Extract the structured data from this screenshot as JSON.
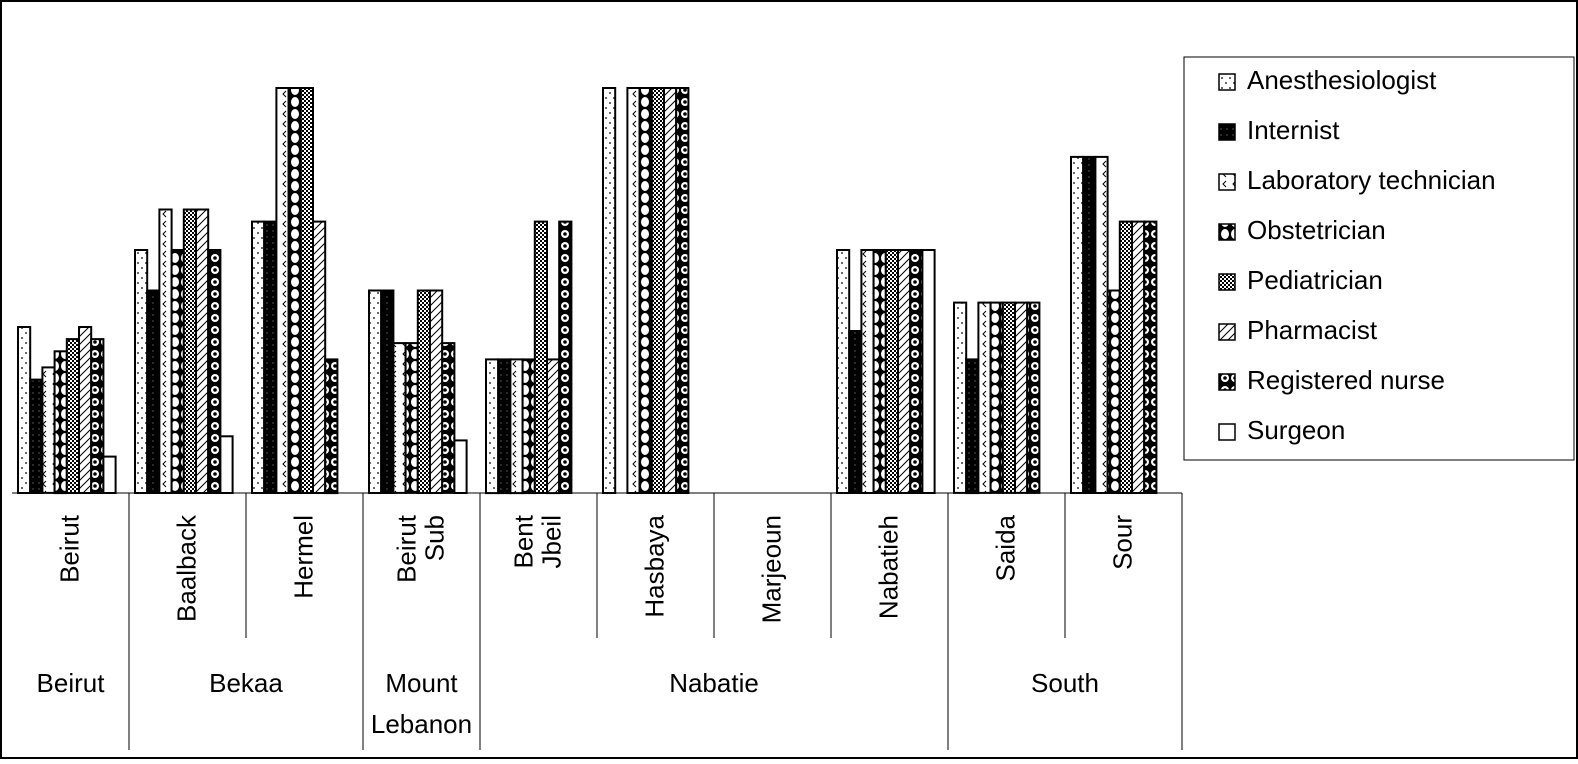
{
  "chart_data": {
    "type": "bar",
    "title": "",
    "xlabel": "",
    "ylabel": "",
    "ylim": [
      0,
      1
    ],
    "grid": false,
    "legend_position": "right",
    "groups": [
      {
        "label": "Beirut",
        "districts": [
          "Beirut"
        ]
      },
      {
        "label": "Bekaa",
        "districts": [
          "Baalback",
          "Hermel"
        ]
      },
      {
        "label": "Mount Lebanon",
        "districts": [
          "Beirut Sub"
        ]
      },
      {
        "label": "Nabatie",
        "districts": [
          "Bent Jbeil",
          "Hasbaya",
          "Marjeoun",
          "Nabatieh"
        ]
      },
      {
        "label": "South",
        "districts": [
          "Saida",
          "Sour"
        ]
      }
    ],
    "categories": [
      "Beirut",
      "Baalback",
      "Hermel",
      "Beirut Sub",
      "Bent Jbeil",
      "Hasbaya",
      "Marjeoun",
      "Nabatieh",
      "Saida",
      "Sour"
    ],
    "series": [
      {
        "name": "Anesthesiologist",
        "pattern": "dots",
        "values": [
          0.41,
          0.6,
          0.67,
          0.5,
          0.33,
          1.0,
          0.0,
          0.6,
          0.47,
          0.83
        ]
      },
      {
        "name": "Internist",
        "pattern": "black",
        "values": [
          0.28,
          0.5,
          0.67,
          0.5,
          0.33,
          0.0,
          0.0,
          0.4,
          0.33,
          0.83
        ]
      },
      {
        "name": "Laboratory technician",
        "pattern": "chevron",
        "values": [
          0.31,
          0.7,
          1.0,
          0.37,
          0.33,
          1.0,
          0.0,
          0.6,
          0.47,
          0.83
        ]
      },
      {
        "name": "Obstetrician",
        "pattern": "circles",
        "values": [
          0.35,
          0.6,
          1.0,
          0.37,
          0.33,
          1.0,
          0.0,
          0.6,
          0.47,
          0.5
        ]
      },
      {
        "name": "Pediatrician",
        "pattern": "dense",
        "values": [
          0.38,
          0.7,
          1.0,
          0.5,
          0.67,
          1.0,
          0.0,
          0.6,
          0.47,
          0.67
        ]
      },
      {
        "name": "Pharmacist",
        "pattern": "diagonal",
        "values": [
          0.41,
          0.7,
          0.67,
          0.5,
          0.33,
          1.0,
          0.0,
          0.6,
          0.47,
          0.67
        ]
      },
      {
        "name": "Registered nurse",
        "pattern": "rings",
        "values": [
          0.38,
          0.6,
          0.33,
          0.37,
          0.67,
          1.0,
          0.0,
          0.6,
          0.47,
          0.67
        ]
      },
      {
        "name": "Surgeon",
        "pattern": "white",
        "values": [
          0.09,
          0.14,
          0.0,
          0.13,
          0.0,
          0.0,
          0.0,
          0.6,
          0.0,
          0.0
        ]
      }
    ]
  }
}
